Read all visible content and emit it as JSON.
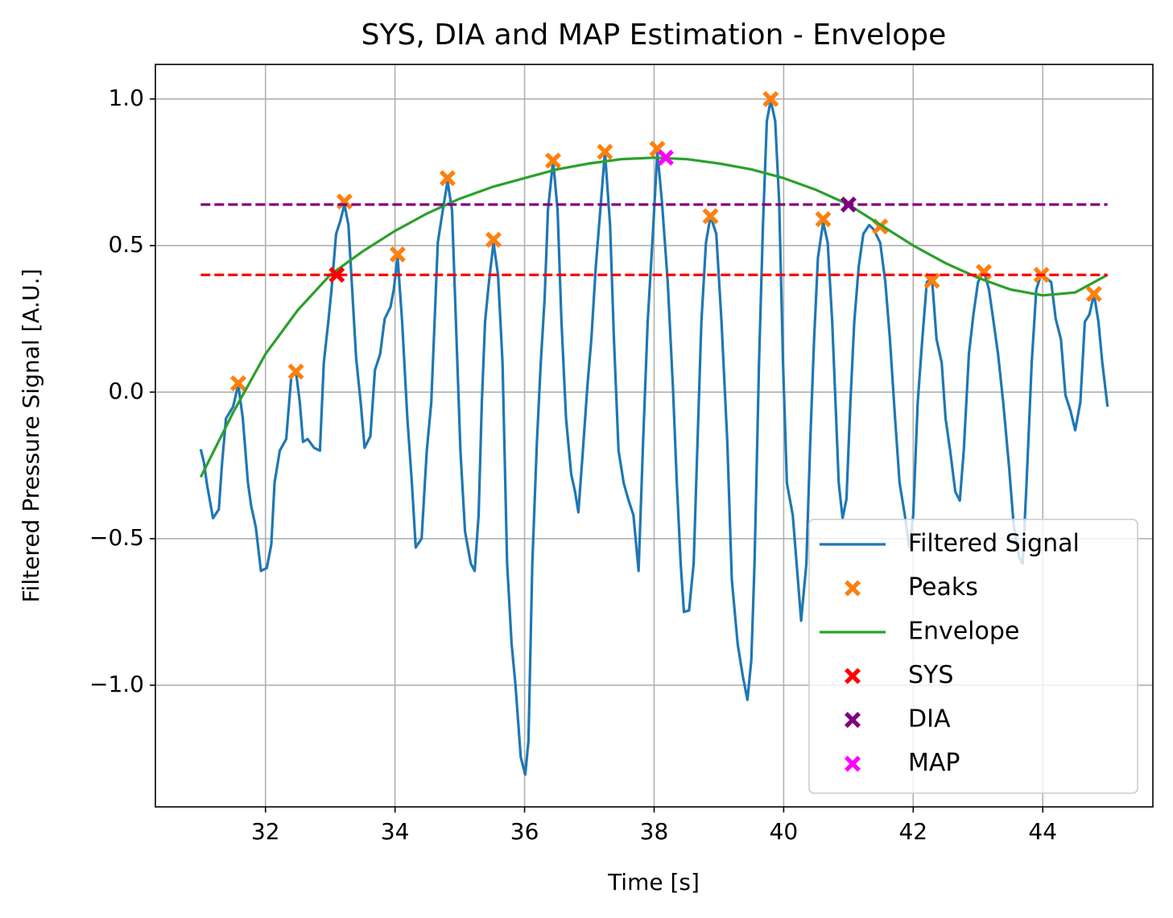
{
  "chart_data": {
    "type": "line",
    "title": "SYS, DIA and MAP Estimation - Envelope",
    "xlabel": "Time [s]",
    "ylabel": "Filtered Pressure Signal [A.U.]",
    "xlim": [
      30.3,
      45.7
    ],
    "ylim": [
      -1.415,
      1.118
    ],
    "xticks": [
      32,
      34,
      36,
      38,
      40,
      42,
      44
    ],
    "yticks": [
      {
        "value": -1.0,
        "label": "−1.0"
      },
      {
        "value": -0.5,
        "label": "−0.5"
      },
      {
        "value": 0,
        "label": "0.0"
      },
      {
        "value": 0.5,
        "label": "0.5"
      },
      {
        "value": 1.0,
        "label": "1.0"
      }
    ],
    "grid": true,
    "legend": "lower right",
    "hlines": [
      {
        "value": 0.4,
        "color": "#ff0000",
        "xmin": 31,
        "xmax": 45
      },
      {
        "value": 0.64,
        "color": "#800080",
        "xmin": 31,
        "xmax": 45
      }
    ],
    "series": [
      {
        "name": "Filtered Signal",
        "color": "#1f77b4",
        "style": "line",
        "x": [
          31.0,
          31.05,
          31.1,
          31.19,
          31.28,
          31.33,
          31.39,
          31.5,
          31.58,
          31.65,
          31.73,
          31.78,
          31.85,
          31.93,
          32.02,
          32.09,
          32.14,
          32.22,
          32.32,
          32.4,
          32.47,
          32.53,
          32.58,
          32.65,
          32.75,
          32.84,
          32.9,
          32.97,
          33.02,
          33.09,
          33.15,
          33.22,
          33.28,
          33.33,
          33.4,
          33.47,
          33.53,
          33.62,
          33.69,
          33.77,
          33.84,
          33.93,
          33.98,
          34.04,
          34.11,
          34.19,
          34.26,
          34.32,
          34.41,
          34.49,
          34.56,
          34.61,
          34.66,
          34.73,
          34.81,
          34.88,
          34.94,
          35.01,
          35.08,
          35.17,
          35.23,
          35.29,
          35.34,
          35.39,
          35.45,
          35.52,
          35.59,
          35.66,
          35.73,
          35.8,
          35.86,
          35.94,
          36.01,
          36.06,
          36.12,
          36.19,
          36.25,
          36.31,
          36.36,
          36.44,
          36.51,
          36.57,
          36.64,
          36.72,
          36.78,
          36.83,
          36.9,
          36.97,
          37.03,
          37.1,
          37.18,
          37.24,
          37.32,
          37.38,
          37.45,
          37.53,
          37.6,
          37.68,
          37.76,
          37.83,
          37.9,
          37.98,
          38.05,
          38.12,
          38.21,
          38.29,
          38.35,
          38.41,
          38.46,
          38.54,
          38.61,
          38.67,
          38.73,
          38.8,
          38.87,
          38.96,
          39.04,
          39.13,
          39.2,
          39.29,
          39.37,
          39.44,
          39.5,
          39.55,
          39.62,
          39.68,
          39.74,
          39.8,
          39.87,
          39.93,
          39.99,
          40.05,
          40.14,
          40.2,
          40.27,
          40.35,
          40.41,
          40.47,
          40.53,
          40.61,
          40.68,
          40.75,
          40.81,
          40.85,
          40.91,
          40.97,
          41.03,
          41.09,
          41.16,
          41.23,
          41.32,
          41.39,
          41.49,
          41.57,
          41.64,
          41.72,
          41.79,
          41.87,
          41.94,
          42.0,
          42.07,
          42.14,
          42.21,
          42.29,
          42.36,
          42.44,
          42.5,
          42.57,
          42.65,
          42.72,
          42.78,
          42.86,
          42.93,
          43.0,
          43.09,
          43.17,
          43.24,
          43.31,
          43.39,
          43.48,
          43.55,
          43.63,
          43.69,
          43.75,
          43.83,
          43.9,
          43.98,
          44.05,
          44.13,
          44.2,
          44.28,
          44.35,
          44.43,
          44.5,
          44.58,
          44.65,
          44.72,
          44.79,
          44.86,
          44.92,
          45.0
        ],
        "values": [
          -0.195,
          -0.24,
          -0.32,
          -0.43,
          -0.4,
          -0.24,
          -0.09,
          -0.05,
          0.025,
          -0.09,
          -0.31,
          -0.39,
          -0.46,
          -0.61,
          -0.6,
          -0.52,
          -0.31,
          -0.2,
          -0.16,
          0.06,
          0.07,
          -0.035,
          -0.17,
          -0.16,
          -0.19,
          -0.2,
          0.1,
          0.24,
          0.35,
          0.54,
          0.58,
          0.64,
          0.57,
          0.38,
          0.115,
          -0.035,
          -0.19,
          -0.15,
          0.075,
          0.13,
          0.25,
          0.29,
          0.35,
          0.46,
          0.24,
          -0.09,
          -0.31,
          -0.53,
          -0.5,
          -0.2,
          -0.035,
          0.24,
          0.51,
          0.61,
          0.72,
          0.62,
          0.24,
          -0.2,
          -0.475,
          -0.585,
          -0.61,
          -0.42,
          -0.035,
          0.24,
          0.375,
          0.51,
          0.4,
          0.1,
          -0.585,
          -0.86,
          -1.0,
          -1.245,
          -1.305,
          -1.19,
          -0.585,
          -0.17,
          0.1,
          0.32,
          0.62,
          0.79,
          0.62,
          0.24,
          -0.09,
          -0.28,
          -0.34,
          -0.41,
          -0.2,
          0.02,
          0.18,
          0.43,
          0.65,
          0.82,
          0.57,
          0.18,
          -0.2,
          -0.31,
          -0.365,
          -0.42,
          -0.61,
          -0.17,
          0.24,
          0.54,
          0.82,
          0.65,
          0.375,
          0.02,
          -0.31,
          -0.585,
          -0.75,
          -0.745,
          -0.585,
          -0.17,
          0.24,
          0.51,
          0.6,
          0.54,
          0.24,
          -0.17,
          -0.64,
          -0.86,
          -0.97,
          -1.05,
          -0.915,
          -0.585,
          0.1,
          0.57,
          0.925,
          0.995,
          0.925,
          0.65,
          0.1,
          -0.31,
          -0.42,
          -0.585,
          -0.78,
          -0.585,
          -0.17,
          0.18,
          0.46,
          0.58,
          0.51,
          0.24,
          -0.09,
          -0.31,
          -0.43,
          -0.365,
          -0.035,
          0.24,
          0.43,
          0.54,
          0.57,
          0.555,
          0.51,
          0.375,
          0.18,
          -0.09,
          -0.31,
          -0.42,
          -0.53,
          -0.42,
          -0.035,
          0.18,
          0.375,
          0.39,
          0.18,
          0.1,
          -0.09,
          -0.2,
          -0.34,
          -0.37,
          -0.2,
          0.13,
          0.265,
          0.375,
          0.415,
          0.35,
          0.24,
          0.13,
          -0.035,
          -0.255,
          -0.45,
          -0.56,
          -0.585,
          -0.31,
          0.1,
          0.35,
          0.405,
          0.39,
          0.375,
          0.25,
          0.18,
          -0.01,
          -0.065,
          -0.13,
          -0.035,
          0.24,
          0.265,
          0.335,
          0.24,
          0.1,
          -0.05
        ]
      },
      {
        "name": "Peaks",
        "color": "#ff7f0e",
        "style": "marker",
        "x": [
          31.58,
          32.47,
          33.22,
          34.04,
          34.81,
          35.52,
          36.44,
          37.24,
          38.05,
          38.87,
          39.8,
          40.61,
          41.49,
          42.29,
          43.09,
          43.98,
          44.79
        ],
        "values": [
          0.03,
          0.07,
          0.65,
          0.47,
          0.73,
          0.52,
          0.79,
          0.82,
          0.83,
          0.6,
          1.0,
          0.59,
          0.565,
          0.38,
          0.41,
          0.4,
          0.335
        ]
      },
      {
        "name": "Envelope",
        "color": "#2ca02c",
        "style": "line",
        "x": [
          31,
          31.5,
          32,
          32.5,
          33,
          33.5,
          34,
          34.5,
          35,
          35.5,
          36,
          36.5,
          37,
          37.5,
          38,
          38.5,
          39,
          39.5,
          40,
          40.5,
          41,
          41.5,
          42,
          42.5,
          43,
          43.5,
          44,
          44.5,
          45
        ],
        "values": [
          -0.29,
          -0.07,
          0.13,
          0.28,
          0.4,
          0.48,
          0.55,
          0.61,
          0.66,
          0.7,
          0.73,
          0.76,
          0.78,
          0.795,
          0.8,
          0.795,
          0.78,
          0.76,
          0.73,
          0.69,
          0.64,
          0.57,
          0.5,
          0.44,
          0.39,
          0.35,
          0.33,
          0.34,
          0.4
        ]
      },
      {
        "name": "SYS",
        "color": "#ff0000",
        "style": "marker",
        "x": [
          33.1
        ],
        "values": [
          0.4
        ]
      },
      {
        "name": "DIA",
        "color": "#800080",
        "style": "marker",
        "x": [
          41.0
        ],
        "values": [
          0.64
        ]
      },
      {
        "name": "MAP",
        "color": "#ff00ff",
        "style": "marker",
        "x": [
          38.18
        ],
        "values": [
          0.8
        ]
      }
    ]
  }
}
